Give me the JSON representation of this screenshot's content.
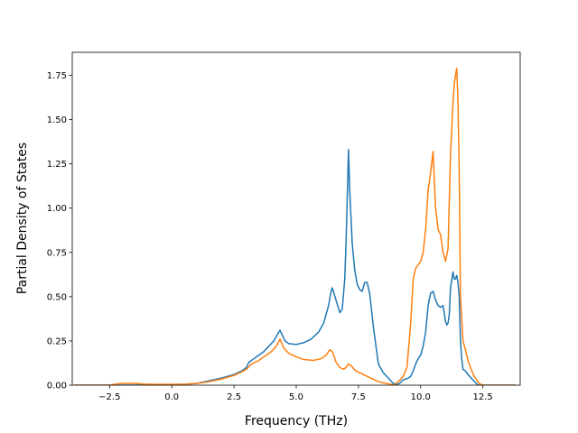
{
  "chart_data": {
    "type": "line",
    "title": "",
    "xlabel": "Frequency (THz)",
    "ylabel": "Partial Density of States",
    "xlim": [
      -4.0,
      14.0
    ],
    "ylim": [
      0.0,
      1.88
    ],
    "xticks": [
      -2.5,
      0.0,
      2.5,
      5.0,
      7.5,
      10.0,
      12.5
    ],
    "xtick_labels": [
      "−2.5",
      "0.0",
      "2.5",
      "5.0",
      "7.5",
      "10.0",
      "12.5"
    ],
    "yticks": [
      0.0,
      0.25,
      0.5,
      0.75,
      1.0,
      1.25,
      1.5,
      1.75
    ],
    "ytick_labels": [
      "0.00",
      "0.25",
      "0.50",
      "0.75",
      "1.00",
      "1.25",
      "1.50",
      "1.75"
    ],
    "grid": false,
    "legend": "none",
    "series": [
      {
        "color": "#1f77b4",
        "x": [
          -3.9,
          -2.5,
          -1.5,
          0.0,
          0.5,
          1.0,
          1.5,
          2.0,
          2.5,
          2.8,
          3.0,
          3.1,
          3.3,
          3.5,
          3.7,
          3.9,
          4.1,
          4.3,
          4.35,
          4.45,
          4.55,
          4.7,
          5.0,
          5.3,
          5.6,
          5.9,
          6.1,
          6.2,
          6.3,
          6.4,
          6.45,
          6.6,
          6.75,
          6.85,
          6.95,
          7.0,
          7.05,
          7.1,
          7.15,
          7.25,
          7.35,
          7.45,
          7.55,
          7.65,
          7.75,
          7.85,
          7.95,
          8.1,
          8.3,
          8.5,
          8.7,
          8.9,
          9.05,
          9.15,
          9.3,
          9.5,
          9.6,
          9.7,
          9.8,
          9.9,
          10.0,
          10.1,
          10.2,
          10.3,
          10.4,
          10.5,
          10.6,
          10.7,
          10.8,
          10.9,
          11.0,
          11.05,
          11.1,
          11.15,
          11.2,
          11.3,
          11.35,
          11.4,
          11.45,
          11.5,
          11.55,
          11.6,
          11.65,
          11.7,
          11.8,
          11.9,
          12.1,
          12.3,
          12.5,
          13.0,
          13.8
        ],
        "y": [
          0.0,
          0.0,
          0.0,
          0.002,
          0.005,
          0.01,
          0.025,
          0.04,
          0.06,
          0.08,
          0.1,
          0.13,
          0.15,
          0.17,
          0.19,
          0.22,
          0.25,
          0.3,
          0.31,
          0.28,
          0.25,
          0.235,
          0.23,
          0.24,
          0.26,
          0.3,
          0.35,
          0.4,
          0.45,
          0.53,
          0.55,
          0.48,
          0.41,
          0.43,
          0.6,
          0.8,
          1.05,
          1.33,
          1.1,
          0.8,
          0.65,
          0.57,
          0.54,
          0.53,
          0.58,
          0.58,
          0.52,
          0.33,
          0.12,
          0.07,
          0.04,
          0.01,
          0.005,
          0.01,
          0.03,
          0.04,
          0.05,
          0.08,
          0.12,
          0.15,
          0.17,
          0.22,
          0.3,
          0.45,
          0.52,
          0.53,
          0.48,
          0.45,
          0.44,
          0.45,
          0.36,
          0.34,
          0.35,
          0.4,
          0.55,
          0.64,
          0.6,
          0.6,
          0.62,
          0.58,
          0.5,
          0.25,
          0.15,
          0.09,
          0.08,
          0.06,
          0.03,
          0.0,
          0.0,
          0.0,
          0.0
        ]
      },
      {
        "color": "#ff7f0e",
        "x": [
          -3.9,
          -2.5,
          -2.3,
          -2.0,
          -1.5,
          -1.0,
          -0.5,
          0.0,
          0.5,
          1.0,
          1.5,
          2.0,
          2.5,
          2.8,
          3.0,
          3.2,
          3.5,
          3.8,
          4.0,
          4.2,
          4.35,
          4.5,
          4.7,
          5.0,
          5.3,
          5.7,
          6.0,
          6.2,
          6.35,
          6.45,
          6.6,
          6.75,
          6.9,
          7.0,
          7.1,
          7.2,
          7.4,
          7.7,
          8.0,
          8.3,
          8.6,
          8.8,
          8.95,
          9.1,
          9.3,
          9.45,
          9.6,
          9.7,
          9.8,
          9.9,
          10.0,
          10.1,
          10.2,
          10.3,
          10.4,
          10.5,
          10.55,
          10.6,
          10.7,
          10.8,
          10.9,
          11.0,
          11.1,
          11.2,
          11.3,
          11.35,
          11.4,
          11.45,
          11.5,
          11.55,
          11.6,
          11.7,
          11.8,
          11.9,
          12.0,
          12.15,
          12.35,
          12.5,
          13.0,
          13.8
        ],
        "y": [
          0.0,
          0.0,
          0.005,
          0.01,
          0.01,
          0.005,
          0.005,
          0.005,
          0.005,
          0.01,
          0.02,
          0.035,
          0.055,
          0.075,
          0.09,
          0.12,
          0.14,
          0.17,
          0.19,
          0.22,
          0.26,
          0.21,
          0.18,
          0.16,
          0.145,
          0.14,
          0.15,
          0.17,
          0.2,
          0.19,
          0.13,
          0.1,
          0.09,
          0.1,
          0.12,
          0.11,
          0.08,
          0.06,
          0.04,
          0.02,
          0.01,
          0.005,
          0.0,
          0.02,
          0.05,
          0.1,
          0.35,
          0.6,
          0.66,
          0.68,
          0.7,
          0.75,
          0.88,
          1.1,
          1.2,
          1.32,
          1.15,
          1.0,
          0.88,
          0.85,
          0.75,
          0.7,
          0.77,
          1.3,
          1.6,
          1.7,
          1.75,
          1.79,
          1.6,
          1.2,
          0.5,
          0.25,
          0.2,
          0.14,
          0.1,
          0.05,
          0.01,
          0.0,
          0.0,
          0.0
        ]
      }
    ]
  }
}
